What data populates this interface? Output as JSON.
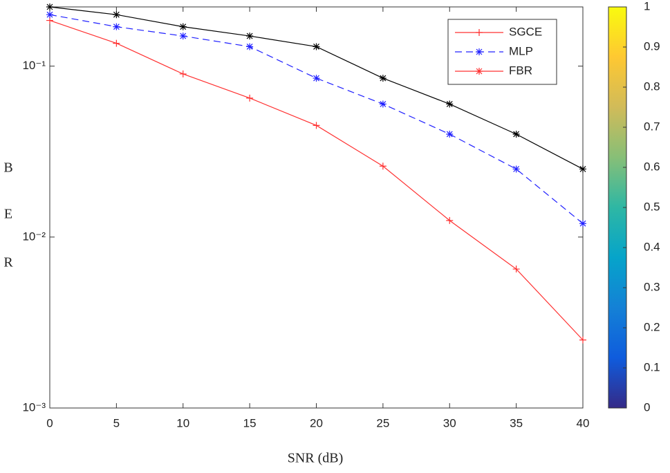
{
  "chart_data": {
    "type": "line",
    "x": [
      0,
      5,
      10,
      15,
      20,
      25,
      30,
      35,
      40
    ],
    "series": [
      {
        "name": "SGCE",
        "color": "#ff3030",
        "marker": "+",
        "dash": false,
        "values": [
          0.185,
          0.136,
          0.09,
          0.065,
          0.045,
          0.026,
          0.0125,
          0.0065,
          0.0025
        ]
      },
      {
        "name": "MLP",
        "color": "#2020ff",
        "marker": "*",
        "dash": true,
        "values": [
          0.2,
          0.17,
          0.15,
          0.13,
          0.085,
          0.06,
          0.04,
          0.025,
          0.012
        ]
      },
      {
        "name": "FBR",
        "color": "#000000",
        "legend_color": "#ff3030",
        "marker": "*",
        "dash": false,
        "values": [
          0.222,
          0.2,
          0.17,
          0.15,
          0.13,
          0.085,
          0.06,
          0.04,
          0.025
        ]
      }
    ],
    "xlim": [
      0,
      40
    ],
    "xticks": [
      0,
      5,
      10,
      15,
      20,
      25,
      30,
      35,
      40
    ],
    "ylim": [
      0.001,
      0.222
    ],
    "log_y": true,
    "yticks": [
      {
        "value": 0.001,
        "label": "10⁻³"
      },
      {
        "value": 0.01,
        "label": "10⁻²"
      },
      {
        "value": 0.1,
        "label": "10⁻¹"
      }
    ],
    "xlabel": "SNR (dB)",
    "ylabel": [
      "B",
      "E",
      "R"
    ],
    "legend": "upper right",
    "grid": false,
    "colorbar": {
      "lim": [
        0,
        1
      ],
      "ticks": [
        0,
        0.1,
        0.2,
        0.3,
        0.4,
        0.5,
        0.6,
        0.7,
        0.8,
        0.9,
        1
      ],
      "colors": [
        "#352a87",
        "#0f5cdd",
        "#1481d6",
        "#06a4ca",
        "#2eb7a4",
        "#87bf77",
        "#d1bb59",
        "#fec832",
        "#f9fb0e"
      ]
    }
  }
}
